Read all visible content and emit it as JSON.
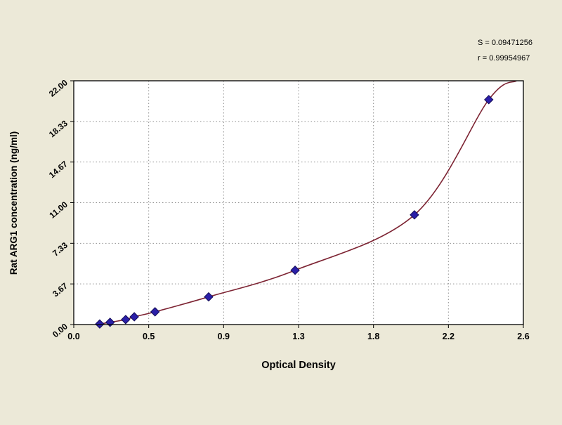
{
  "annotations": {
    "s_label": "S = 0.09471256",
    "r_label": "r = 0.99954967"
  },
  "chart_data": {
    "type": "scatter",
    "title": "",
    "xlabel": "Optical Density",
    "ylabel": "Rat ARG1 concentration (ng/ml)",
    "xlim": [
      0.0,
      2.6
    ],
    "ylim": [
      0.0,
      22.0
    ],
    "x_ticks": [
      "0.0",
      "0.5",
      "0.9",
      "1.3",
      "1.8",
      "2.2",
      "2.6"
    ],
    "y_ticks": [
      "0.00",
      "3.67",
      "7.33",
      "11.00",
      "14.67",
      "18.33",
      "22.00"
    ],
    "grid": true,
    "legend": "none",
    "points": [
      {
        "x": 0.15,
        "y": 0.05
      },
      {
        "x": 0.21,
        "y": 0.2
      },
      {
        "x": 0.3,
        "y": 0.45
      },
      {
        "x": 0.35,
        "y": 0.7
      },
      {
        "x": 0.47,
        "y": 1.15
      },
      {
        "x": 0.78,
        "y": 2.5
      },
      {
        "x": 1.28,
        "y": 4.9
      },
      {
        "x": 1.97,
        "y": 9.9
      },
      {
        "x": 2.4,
        "y": 20.3
      }
    ],
    "curve_end": {
      "x": 2.56,
      "y": 22.0
    },
    "colors": {
      "background": "#ece9d8",
      "plot_background": "#ffffff",
      "curve": "#7d2433",
      "marker": "#2b1fa8",
      "marker_edge": "#120b56",
      "grid": "#8f8f8f",
      "axis": "#000000",
      "text": "#000000"
    }
  }
}
